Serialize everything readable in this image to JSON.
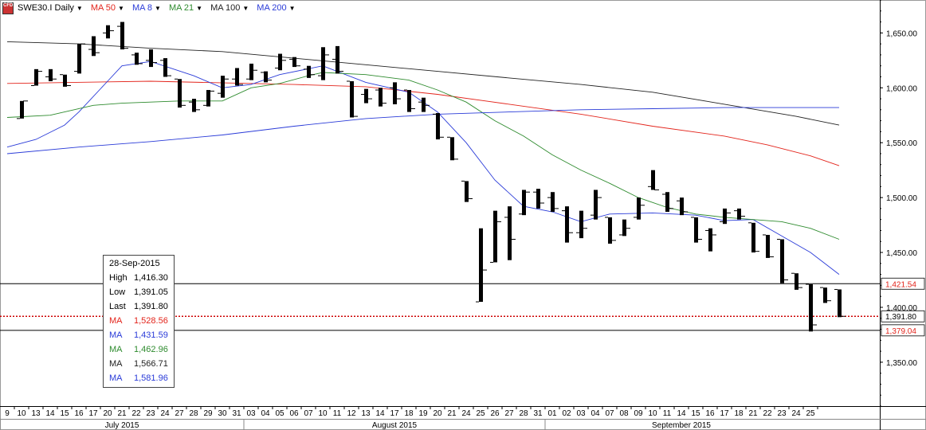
{
  "toolbar": {
    "symbol": "SWE30.I Daily",
    "symbol_icon": "cfd-icon",
    "indicators": [
      {
        "label": "MA 50",
        "color": "#e3241b"
      },
      {
        "label": "MA 8",
        "color": "#2a3bd8"
      },
      {
        "label": "MA 21",
        "color": "#2e8b2e"
      },
      {
        "label": "MA 100",
        "color": "#222222"
      },
      {
        "label": "MA 200",
        "color": "#2a3bd8"
      }
    ]
  },
  "infobox": {
    "date": "28-Sep-2015",
    "rows": [
      {
        "label": "High",
        "value": "1,416.30",
        "color": "#000000"
      },
      {
        "label": "Low",
        "value": "1,391.05",
        "color": "#000000"
      },
      {
        "label": "Last",
        "value": "1,391.80",
        "color": "#000000"
      },
      {
        "label": "MA",
        "value": "1,528.56",
        "color": "#e3241b"
      },
      {
        "label": "MA",
        "value": "1,431.59",
        "color": "#2a3bd8"
      },
      {
        "label": "MA",
        "value": "1,462.96",
        "color": "#2e8b2e"
      },
      {
        "label": "MA",
        "value": "1,566.71",
        "color": "#222222"
      },
      {
        "label": "MA",
        "value": "1,581.96",
        "color": "#2a3bd8"
      }
    ]
  },
  "chart_data": {
    "type": "ohlc",
    "ylim": [
      1310,
      1680
    ],
    "y_ticks": [
      {
        "value": 1350,
        "label": "1,350.00"
      },
      {
        "value": 1400,
        "label": "1,400.00"
      },
      {
        "value": 1450,
        "label": "1,450.00"
      },
      {
        "value": 1500,
        "label": "1,500.00"
      },
      {
        "value": 1550,
        "label": "1,550.00"
      },
      {
        "value": 1600,
        "label": "1,600.00"
      },
      {
        "value": 1650,
        "label": "1,650.00"
      }
    ],
    "x_labels": [
      "9",
      "10",
      "13",
      "14",
      "15",
      "16",
      "17",
      "20",
      "21",
      "22",
      "23",
      "24",
      "27",
      "28",
      "29",
      "30",
      "31",
      "03",
      "04",
      "05",
      "06",
      "07",
      "10",
      "11",
      "12",
      "13",
      "14",
      "17",
      "18",
      "19",
      "20",
      "21",
      "24",
      "25",
      "26",
      "27",
      "28",
      "31",
      "01",
      "02",
      "03",
      "04",
      "07",
      "08",
      "09",
      "10",
      "11",
      "14",
      "15",
      "16",
      "17",
      "18",
      "21",
      "22",
      "23",
      "24",
      "25"
    ],
    "months": [
      {
        "label": "July 2015",
        "start": 0,
        "end": 16
      },
      {
        "label": "August 2015",
        "start": 17,
        "end": 37
      },
      {
        "label": "September 2015",
        "start": 38,
        "end": 56
      }
    ],
    "bars": [
      {
        "x": 1,
        "o": 1572,
        "h": 1588,
        "l": 1572,
        "c": 1588
      },
      {
        "x": 2,
        "o": 1602,
        "h": 1617,
        "l": 1602,
        "c": 1615
      },
      {
        "x": 3,
        "o": 1610,
        "h": 1617,
        "l": 1606,
        "c": 1608
      },
      {
        "x": 4,
        "o": 1612,
        "h": 1612,
        "l": 1601,
        "c": 1602
      },
      {
        "x": 5,
        "o": 1615,
        "h": 1640,
        "l": 1613,
        "c": 1640
      },
      {
        "x": 6,
        "o": 1635,
        "h": 1647,
        "l": 1629,
        "c": 1632
      },
      {
        "x": 7,
        "o": 1650,
        "h": 1657,
        "l": 1645,
        "c": 1652
      },
      {
        "x": 8,
        "o": 1656,
        "h": 1660,
        "l": 1635,
        "c": 1636
      },
      {
        "x": 9,
        "o": 1630,
        "h": 1632,
        "l": 1621,
        "c": 1622
      },
      {
        "x": 10,
        "o": 1625,
        "h": 1635,
        "l": 1619,
        "c": 1623
      },
      {
        "x": 11,
        "o": 1625,
        "h": 1627,
        "l": 1610,
        "c": 1611
      },
      {
        "x": 12,
        "o": 1608,
        "h": 1608,
        "l": 1582,
        "c": 1584
      },
      {
        "x": 13,
        "o": 1587,
        "h": 1590,
        "l": 1578,
        "c": 1580
      },
      {
        "x": 14,
        "o": 1584,
        "h": 1598,
        "l": 1583,
        "c": 1597
      },
      {
        "x": 15,
        "o": 1595,
        "h": 1611,
        "l": 1591,
        "c": 1608
      },
      {
        "x": 16,
        "o": 1608,
        "h": 1618,
        "l": 1602,
        "c": 1603
      },
      {
        "x": 17,
        "o": 1608,
        "h": 1622,
        "l": 1607,
        "c": 1616
      },
      {
        "x": 18,
        "o": 1614,
        "h": 1615,
        "l": 1605,
        "c": 1607
      },
      {
        "x": 19,
        "o": 1618,
        "h": 1631,
        "l": 1616,
        "c": 1625
      },
      {
        "x": 20,
        "o": 1626,
        "h": 1628,
        "l": 1619,
        "c": 1620
      },
      {
        "x": 21,
        "o": 1617,
        "h": 1620,
        "l": 1609,
        "c": 1612
      },
      {
        "x": 22,
        "o": 1611,
        "h": 1637,
        "l": 1607,
        "c": 1630
      },
      {
        "x": 23,
        "o": 1626,
        "h": 1638,
        "l": 1613,
        "c": 1615
      },
      {
        "x": 24,
        "o": 1606,
        "h": 1606,
        "l": 1573,
        "c": 1574
      },
      {
        "x": 25,
        "o": 1594,
        "h": 1599,
        "l": 1586,
        "c": 1590
      },
      {
        "x": 26,
        "o": 1598,
        "h": 1600,
        "l": 1583,
        "c": 1586
      },
      {
        "x": 27,
        "o": 1600,
        "h": 1605,
        "l": 1585,
        "c": 1590
      },
      {
        "x": 28,
        "o": 1598,
        "h": 1598,
        "l": 1578,
        "c": 1581
      },
      {
        "x": 29,
        "o": 1587,
        "h": 1591,
        "l": 1578,
        "c": 1584
      },
      {
        "x": 30,
        "o": 1576,
        "h": 1577,
        "l": 1553,
        "c": 1555
      },
      {
        "x": 31,
        "o": 1555,
        "h": 1555,
        "l": 1534,
        "c": 1535
      },
      {
        "x": 32,
        "o": 1515,
        "h": 1515,
        "l": 1496,
        "c": 1499
      },
      {
        "x": 33,
        "o": 1405,
        "h": 1472,
        "l": 1405,
        "c": 1434
      },
      {
        "x": 34,
        "o": 1441,
        "h": 1488,
        "l": 1441,
        "c": 1478
      },
      {
        "x": 35,
        "o": 1482,
        "h": 1492,
        "l": 1443,
        "c": 1462
      },
      {
        "x": 36,
        "o": 1485,
        "h": 1507,
        "l": 1484,
        "c": 1505
      },
      {
        "x": 37,
        "o": 1505,
        "h": 1508,
        "l": 1490,
        "c": 1495
      },
      {
        "x": 38,
        "o": 1500,
        "h": 1505,
        "l": 1487,
        "c": 1490
      },
      {
        "x": 39,
        "o": 1488,
        "h": 1492,
        "l": 1459,
        "c": 1468
      },
      {
        "x": 40,
        "o": 1468,
        "h": 1488,
        "l": 1463,
        "c": 1472
      },
      {
        "x": 41,
        "o": 1484,
        "h": 1507,
        "l": 1480,
        "c": 1500
      },
      {
        "x": 42,
        "o": 1482,
        "h": 1482,
        "l": 1458,
        "c": 1461
      },
      {
        "x": 43,
        "o": 1466,
        "h": 1480,
        "l": 1465,
        "c": 1472
      },
      {
        "x": 44,
        "o": 1482,
        "h": 1500,
        "l": 1480,
        "c": 1493
      },
      {
        "x": 45,
        "o": 1510,
        "h": 1525,
        "l": 1507,
        "c": 1507
      },
      {
        "x": 46,
        "o": 1503,
        "h": 1505,
        "l": 1487,
        "c": 1490
      },
      {
        "x": 47,
        "o": 1497,
        "h": 1500,
        "l": 1484,
        "c": 1487
      },
      {
        "x": 48,
        "o": 1482,
        "h": 1482,
        "l": 1459,
        "c": 1462
      },
      {
        "x": 49,
        "o": 1470,
        "h": 1472,
        "l": 1451,
        "c": 1466
      },
      {
        "x": 50,
        "o": 1478,
        "h": 1490,
        "l": 1476,
        "c": 1486
      },
      {
        "x": 51,
        "o": 1488,
        "h": 1490,
        "l": 1480,
        "c": 1483
      },
      {
        "x": 52,
        "o": 1477,
        "h": 1477,
        "l": 1450,
        "c": 1451
      },
      {
        "x": 53,
        "o": 1466,
        "h": 1466,
        "l": 1445,
        "c": 1446
      },
      {
        "x": 54,
        "o": 1462,
        "h": 1462,
        "l": 1422,
        "c": 1425
      },
      {
        "x": 55,
        "o": 1431,
        "h": 1431,
        "l": 1416,
        "c": 1418
      },
      {
        "x": 56,
        "o": 1421,
        "h": 1421,
        "l": 1378,
        "c": 1384
      },
      {
        "x": 57,
        "o": 1418,
        "h": 1418,
        "l": 1404,
        "c": 1406
      },
      {
        "x": 58,
        "o": 1416.3,
        "h": 1416.3,
        "l": 1391.05,
        "c": 1391.8
      }
    ],
    "series": [
      {
        "color": "#e3241b",
        "points": [
          [
            0,
            1604
          ],
          [
            10,
            1606
          ],
          [
            20,
            1603
          ],
          [
            25,
            1601
          ],
          [
            30,
            1594
          ],
          [
            35,
            1585
          ],
          [
            40,
            1576
          ],
          [
            45,
            1565
          ],
          [
            50,
            1556
          ],
          [
            53,
            1548
          ],
          [
            56,
            1538
          ],
          [
            58,
            1529
          ]
        ]
      },
      {
        "color": "#2a3bd8",
        "points": [
          [
            0,
            1546
          ],
          [
            2,
            1553
          ],
          [
            4,
            1566
          ],
          [
            5,
            1578
          ],
          [
            7,
            1606
          ],
          [
            8,
            1620
          ],
          [
            10,
            1624
          ],
          [
            13,
            1611
          ],
          [
            15,
            1600
          ],
          [
            17,
            1603
          ],
          [
            19,
            1612
          ],
          [
            22,
            1620
          ],
          [
            25,
            1605
          ],
          [
            28,
            1596
          ],
          [
            30,
            1578
          ],
          [
            32,
            1550
          ],
          [
            34,
            1516
          ],
          [
            36,
            1492
          ],
          [
            38,
            1487
          ],
          [
            40,
            1478
          ],
          [
            42,
            1485
          ],
          [
            45,
            1486
          ],
          [
            48,
            1484
          ],
          [
            50,
            1479
          ],
          [
            52,
            1480
          ],
          [
            54,
            1465
          ],
          [
            56,
            1450
          ],
          [
            58,
            1430
          ]
        ]
      },
      {
        "color": "#2e8b2e",
        "points": [
          [
            0,
            1573
          ],
          [
            3,
            1575
          ],
          [
            6,
            1584
          ],
          [
            8,
            1586
          ],
          [
            12,
            1588
          ],
          [
            15,
            1588
          ],
          [
            17,
            1600
          ],
          [
            19,
            1604
          ],
          [
            21,
            1611
          ],
          [
            22,
            1614
          ],
          [
            25,
            1612
          ],
          [
            28,
            1607
          ],
          [
            30,
            1598
          ],
          [
            32,
            1587
          ],
          [
            34,
            1570
          ],
          [
            36,
            1556
          ],
          [
            38,
            1539
          ],
          [
            40,
            1525
          ],
          [
            42,
            1513
          ],
          [
            44,
            1500
          ],
          [
            46,
            1491
          ],
          [
            48,
            1485
          ],
          [
            50,
            1482
          ],
          [
            52,
            1480
          ],
          [
            54,
            1478
          ],
          [
            56,
            1472
          ],
          [
            58,
            1462
          ]
        ]
      },
      {
        "color": "#222222",
        "points": [
          [
            0,
            1642
          ],
          [
            5,
            1640
          ],
          [
            10,
            1636
          ],
          [
            15,
            1633
          ],
          [
            20,
            1627
          ],
          [
            25,
            1621
          ],
          [
            30,
            1615
          ],
          [
            35,
            1609
          ],
          [
            40,
            1603
          ],
          [
            45,
            1596
          ],
          [
            50,
            1585
          ],
          [
            55,
            1574
          ],
          [
            58,
            1566
          ]
        ]
      },
      {
        "color": "#2a3bd8",
        "points": [
          [
            0,
            1540
          ],
          [
            5,
            1546
          ],
          [
            10,
            1551
          ],
          [
            15,
            1557
          ],
          [
            20,
            1565
          ],
          [
            25,
            1572
          ],
          [
            30,
            1576
          ],
          [
            35,
            1578
          ],
          [
            40,
            1580
          ],
          [
            45,
            1581
          ],
          [
            50,
            1582
          ],
          [
            55,
            1582
          ],
          [
            58,
            1582
          ]
        ]
      }
    ],
    "hlines": [
      {
        "value": 1421.54,
        "label": "1,421.54",
        "color": "#000000",
        "label_color": "#e3241b",
        "style": "solid"
      },
      {
        "value": 1391.8,
        "label": "1,391.80",
        "color": "#cc0000",
        "label_color": "#000000",
        "style": "dotted"
      },
      {
        "value": 1379.04,
        "label": "1,379.04",
        "color": "#000000",
        "label_color": "#e3241b",
        "style": "solid"
      }
    ]
  }
}
